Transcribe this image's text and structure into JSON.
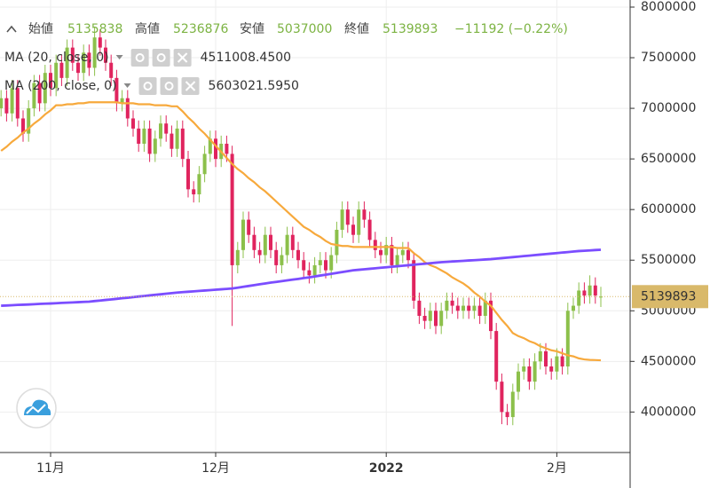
{
  "chart_data": {
    "type": "candlestick",
    "ohlc_labels": [
      "始値",
      "高値",
      "安値",
      "終値"
    ],
    "change_label": "−11192 (−0.22%)",
    "categories": [
      null,
      null,
      null,
      null,
      null,
      null,
      null,
      null,
      null,
      "11月",
      null,
      null,
      null,
      null,
      null,
      null,
      null,
      null,
      null,
      null,
      null,
      null,
      null,
      null,
      null,
      null,
      null,
      null,
      null,
      null,
      null,
      null,
      null,
      null,
      null,
      null,
      null,
      null,
      null,
      "12月",
      null,
      null,
      null,
      null,
      null,
      null,
      null,
      null,
      null,
      null,
      null,
      null,
      null,
      null,
      null,
      null,
      null,
      null,
      null,
      null,
      null,
      null,
      null,
      null,
      null,
      null,
      null,
      null,
      null,
      null,
      "2022",
      null,
      null,
      null,
      null,
      null,
      null,
      null,
      null,
      null,
      null,
      null,
      null,
      null,
      null,
      null,
      null,
      null,
      null,
      null,
      null,
      null,
      null,
      null,
      null,
      null,
      null,
      null,
      null,
      null,
      null,
      "2月",
      null,
      null,
      null,
      null,
      null,
      null,
      null,
      null
    ],
    "open": [
      7000000,
      7100000,
      6950000,
      7200000,
      6900000,
      6750000,
      7000000,
      7250000,
      7050000,
      7350000,
      7200000,
      7450000,
      7300000,
      7600000,
      7450000,
      7350000,
      7550000,
      7400000,
      7700000,
      7600000,
      7450000,
      7300000,
      7050000,
      7100000,
      6900000,
      6800000,
      6650000,
      6800000,
      6550000,
      6700000,
      6850000,
      6750000,
      6600000,
      6800000,
      6500000,
      6200000,
      6150000,
      6350000,
      6550000,
      6700000,
      6500000,
      6650000,
      6550000,
      5450000,
      5600000,
      5900000,
      5750000,
      5600000,
      5550000,
      5750000,
      5600000,
      5450000,
      5550000,
      5750000,
      5600000,
      5500000,
      5400000,
      5350000,
      5450000,
      5500000,
      5400000,
      5550000,
      5800000,
      6000000,
      5850000,
      5750000,
      6000000,
      5900000,
      5700000,
      5600000,
      5550000,
      5650000,
      5450000,
      5550000,
      5600000,
      5500000,
      5100000,
      4950000,
      4900000,
      5000000,
      4850000,
      5000000,
      5100000,
      5050000,
      5000000,
      5050000,
      5000000,
      5050000,
      4950000,
      5100000,
      4800000,
      4300000,
      4000000,
      3950000,
      4200000,
      4400000,
      4450000,
      4300000,
      4500000,
      4600000,
      4450000,
      4400000,
      4550000,
      4450000,
      5000000,
      5050000,
      5200000,
      5150000,
      5250000,
      5135838
    ],
    "high": [
      7180000,
      7180000,
      7280000,
      7280000,
      6980000,
      7080000,
      7330000,
      7330000,
      7430000,
      7430000,
      7530000,
      7530000,
      7680000,
      7680000,
      7530000,
      7630000,
      7630000,
      7800000,
      7780000,
      7680000,
      7530000,
      7380000,
      7180000,
      7180000,
      6980000,
      6880000,
      6880000,
      6880000,
      6780000,
      6930000,
      6930000,
      6830000,
      6880000,
      6880000,
      6580000,
      6280000,
      6430000,
      6630000,
      6780000,
      6780000,
      6730000,
      6730000,
      6630000,
      5680000,
      5980000,
      5980000,
      5830000,
      5680000,
      5830000,
      5830000,
      5680000,
      5630000,
      5830000,
      5830000,
      5680000,
      5580000,
      5480000,
      5530000,
      5580000,
      5580000,
      5630000,
      5880000,
      6080000,
      6080000,
      5930000,
      6080000,
      6080000,
      5980000,
      5780000,
      5680000,
      5730000,
      5730000,
      5630000,
      5680000,
      5680000,
      5580000,
      5180000,
      5030000,
      5080000,
      5080000,
      5080000,
      5180000,
      5180000,
      5130000,
      5130000,
      5130000,
      5130000,
      5130000,
      5180000,
      5180000,
      4880000,
      4380000,
      4080000,
      4280000,
      4480000,
      4530000,
      4530000,
      4580000,
      4680000,
      4680000,
      4530000,
      4630000,
      4630000,
      5080000,
      5130000,
      5280000,
      5280000,
      5350000,
      5330000,
      5236876
    ],
    "low": [
      6920000,
      6870000,
      6870000,
      6820000,
      6670000,
      6670000,
      6920000,
      6970000,
      6970000,
      7120000,
      7120000,
      7220000,
      7220000,
      7370000,
      7270000,
      7270000,
      7320000,
      7320000,
      7520000,
      7370000,
      7220000,
      6970000,
      6970000,
      6820000,
      6720000,
      6570000,
      6570000,
      6470000,
      6470000,
      6620000,
      6670000,
      6520000,
      6520000,
      6420000,
      6120000,
      6070000,
      6070000,
      6270000,
      6470000,
      6420000,
      6420000,
      6470000,
      4850000,
      5370000,
      5520000,
      5670000,
      5520000,
      5470000,
      5470000,
      5520000,
      5370000,
      5370000,
      5470000,
      5520000,
      5420000,
      5320000,
      5270000,
      5270000,
      5370000,
      5320000,
      5320000,
      5470000,
      5720000,
      5770000,
      5670000,
      5670000,
      5820000,
      5620000,
      5520000,
      5470000,
      5470000,
      5370000,
      5370000,
      5470000,
      5420000,
      5020000,
      4870000,
      4820000,
      4820000,
      4770000,
      4770000,
      4920000,
      4970000,
      4920000,
      4920000,
      4920000,
      4920000,
      4870000,
      4870000,
      4720000,
      4220000,
      3880000,
      3870000,
      3870000,
      4120000,
      4320000,
      4220000,
      4220000,
      4420000,
      4370000,
      4320000,
      4320000,
      4370000,
      4370000,
      4920000,
      4970000,
      5070000,
      5070000,
      5070000,
      5037000
    ],
    "close": [
      7100000,
      6950000,
      7200000,
      6900000,
      6750000,
      7000000,
      7250000,
      7050000,
      7350000,
      7200000,
      7450000,
      7300000,
      7600000,
      7450000,
      7350000,
      7550000,
      7400000,
      7700000,
      7600000,
      7450000,
      7300000,
      7050000,
      7100000,
      6900000,
      6800000,
      6650000,
      6800000,
      6550000,
      6700000,
      6850000,
      6750000,
      6600000,
      6800000,
      6500000,
      6200000,
      6150000,
      6350000,
      6550000,
      6700000,
      6500000,
      6650000,
      6550000,
      5450000,
      5600000,
      5900000,
      5750000,
      5600000,
      5550000,
      5750000,
      5600000,
      5450000,
      5550000,
      5750000,
      5600000,
      5500000,
      5400000,
      5350000,
      5450000,
      5500000,
      5400000,
      5550000,
      5800000,
      6000000,
      5850000,
      5750000,
      6000000,
      5900000,
      5700000,
      5600000,
      5550000,
      5650000,
      5450000,
      5550000,
      5600000,
      5500000,
      5100000,
      4950000,
      4900000,
      5000000,
      4850000,
      5000000,
      5100000,
      5050000,
      5000000,
      5050000,
      5000000,
      5050000,
      4950000,
      5100000,
      4800000,
      4300000,
      4000000,
      3950000,
      4200000,
      4400000,
      4450000,
      4300000,
      4500000,
      4600000,
      4450000,
      4400000,
      4550000,
      4450000,
      5000000,
      5050000,
      5200000,
      5150000,
      5250000,
      5151085,
      5139893
    ],
    "up_color": "#8cc04b",
    "down_color": "#e0245e",
    "last_price_color": "#d9b96a",
    "indicators": [
      {
        "name": "MA (20, close, 0)",
        "color": "#f7a93c",
        "value_label": "4511008.4500",
        "values": [
          6580000,
          6620000,
          6670000,
          6710000,
          6760000,
          6800000,
          6850000,
          6890000,
          6940000,
          6980000,
          7030000,
          7030000,
          7040000,
          7040000,
          7050000,
          7050000,
          7060000,
          7060000,
          7060000,
          7060000,
          7060000,
          7060000,
          7050000,
          7050000,
          7050000,
          7040000,
          7040000,
          7040000,
          7030000,
          7030000,
          7030000,
          7020000,
          7020000,
          6970000,
          6910000,
          6860000,
          6800000,
          6750000,
          6690000,
          6630000,
          6570000,
          6510000,
          6450000,
          6400000,
          6360000,
          6310000,
          6270000,
          6220000,
          6180000,
          6130000,
          6080000,
          6030000,
          5980000,
          5930000,
          5880000,
          5830000,
          5800000,
          5760000,
          5730000,
          5690000,
          5660000,
          5650000,
          5640000,
          5640000,
          5630000,
          5630000,
          5630000,
          5630000,
          5630000,
          5630000,
          5630000,
          5630000,
          5620000,
          5620000,
          5620000,
          5570000,
          5530000,
          5480000,
          5450000,
          5430000,
          5400000,
          5370000,
          5330000,
          5300000,
          5270000,
          5230000,
          5180000,
          5140000,
          5090000,
          5050000,
          4980000,
          4910000,
          4850000,
          4780000,
          4750000,
          4730000,
          4700000,
          4680000,
          4650000,
          4630000,
          4610000,
          4600000,
          4580000,
          4560000,
          4550000,
          4530000,
          4520000,
          4515000,
          4513000,
          4511008.45
        ]
      },
      {
        "name": "MA (200, close, 0)",
        "color": "#7b4dff",
        "value_label": "5603021.5950",
        "values": [
          5050000,
          5052000,
          5055000,
          5058000,
          5060000,
          5062000,
          5065000,
          5068000,
          5070000,
          5072000,
          5075000,
          5078000,
          5080000,
          5082000,
          5085000,
          5088000,
          5090000,
          5096000,
          5101000,
          5107000,
          5112000,
          5118000,
          5124000,
          5129000,
          5135000,
          5141000,
          5146000,
          5152000,
          5158000,
          5163000,
          5169000,
          5174000,
          5180000,
          5184000,
          5188000,
          5192000,
          5196000,
          5200000,
          5204000,
          5208000,
          5212000,
          5216000,
          5220000,
          5228000,
          5237000,
          5245000,
          5253000,
          5262000,
          5270000,
          5278000,
          5285000,
          5293000,
          5300000,
          5308000,
          5315000,
          5323000,
          5330000,
          5339000,
          5348000,
          5356000,
          5365000,
          5374000,
          5383000,
          5391000,
          5400000,
          5405000,
          5410000,
          5415000,
          5420000,
          5425000,
          5430000,
          5435000,
          5440000,
          5445000,
          5450000,
          5455000,
          5460000,
          5465000,
          5470000,
          5475000,
          5480000,
          5483000,
          5487000,
          5490000,
          5493000,
          5497000,
          5500000,
          5503000,
          5507000,
          5510000,
          5515000,
          5520000,
          5525000,
          5530000,
          5535000,
          5540000,
          5545000,
          5550000,
          5555000,
          5560000,
          5565000,
          5570000,
          5575000,
          5580000,
          5585000,
          5590000,
          5593000,
          5596000,
          5600000,
          5603021.595
        ]
      }
    ],
    "ylim": [
      3600000,
      8070000
    ],
    "yticks": [
      4000000,
      4500000,
      5000000,
      5500000,
      6000000,
      6500000,
      7000000,
      7500000,
      8000000
    ],
    "grid": true
  }
}
